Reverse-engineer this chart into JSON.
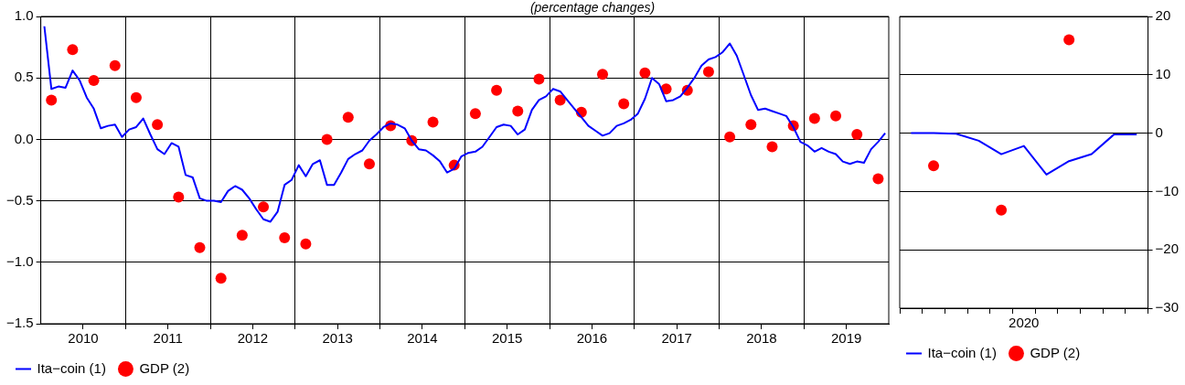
{
  "chart_data": [
    {
      "type": "line",
      "subtitle": "(percentage changes)",
      "xlim": [
        2010,
        2020
      ],
      "xticks": [
        {
          "value": 2010.5,
          "label": "2010"
        },
        {
          "value": 2011,
          "label": null
        },
        {
          "value": 2011.5,
          "label": "2011"
        },
        {
          "value": 2012,
          "label": null
        },
        {
          "value": 2012.5,
          "label": "2012"
        },
        {
          "value": 2013,
          "label": null
        },
        {
          "value": 2013.5,
          "label": "2013"
        },
        {
          "value": 2014,
          "label": null
        },
        {
          "value": 2014.5,
          "label": "2014"
        },
        {
          "value": 2015,
          "label": null
        },
        {
          "value": 2015.5,
          "label": "2015"
        },
        {
          "value": 2016,
          "label": null
        },
        {
          "value": 2016.5,
          "label": "2016"
        },
        {
          "value": 2017,
          "label": null
        },
        {
          "value": 2017.5,
          "label": "2017"
        },
        {
          "value": 2018,
          "label": null
        },
        {
          "value": 2018.5,
          "label": "2018"
        },
        {
          "value": 2019,
          "label": null
        },
        {
          "value": 2019.5,
          "label": "2019"
        }
      ],
      "ylim": [
        -1.5,
        1.0
      ],
      "yticks": [
        {
          "value": -1.5,
          "label": "−1.5"
        },
        {
          "value": -1.0,
          "label": "−1.0"
        },
        {
          "value": -0.5,
          "label": "−0.5"
        },
        {
          "value": 0,
          "label": "0.0"
        },
        {
          "value": 0.5,
          "label": "0.5"
        },
        {
          "value": 1.0,
          "label": "1.0"
        }
      ],
      "grid": true,
      "legend": "bottom left",
      "series": [
        {
          "name": "Ita−coin (1)",
          "type": "line",
          "color": "#0000ff",
          "marker": "none",
          "line_style": "solid",
          "x": [
            2010.042,
            2010.125,
            2010.208,
            2010.292,
            2010.375,
            2010.458,
            2010.542,
            2010.625,
            2010.708,
            2010.792,
            2010.875,
            2010.958,
            2011.042,
            2011.125,
            2011.208,
            2011.292,
            2011.375,
            2011.458,
            2011.542,
            2011.625,
            2011.708,
            2011.792,
            2011.875,
            2011.958,
            2012.042,
            2012.125,
            2012.208,
            2012.292,
            2012.375,
            2012.458,
            2012.542,
            2012.625,
            2012.708,
            2012.792,
            2012.875,
            2012.958,
            2013.042,
            2013.125,
            2013.208,
            2013.292,
            2013.375,
            2013.458,
            2013.542,
            2013.625,
            2013.708,
            2013.792,
            2013.875,
            2013.958,
            2014.042,
            2014.125,
            2014.208,
            2014.292,
            2014.375,
            2014.458,
            2014.542,
            2014.625,
            2014.708,
            2014.792,
            2014.875,
            2014.958,
            2015.042,
            2015.125,
            2015.208,
            2015.292,
            2015.375,
            2015.458,
            2015.542,
            2015.625,
            2015.708,
            2015.792,
            2015.875,
            2015.958,
            2016.042,
            2016.125,
            2016.208,
            2016.292,
            2016.375,
            2016.458,
            2016.542,
            2016.625,
            2016.708,
            2016.792,
            2016.875,
            2016.958,
            2017.042,
            2017.125,
            2017.208,
            2017.292,
            2017.375,
            2017.458,
            2017.542,
            2017.625,
            2017.708,
            2017.792,
            2017.875,
            2017.958,
            2018.042,
            2018.125,
            2018.208,
            2018.292,
            2018.375,
            2018.458,
            2018.542,
            2018.625,
            2018.708,
            2018.792,
            2018.875,
            2018.958,
            2019.042,
            2019.125,
            2019.208,
            2019.292,
            2019.375,
            2019.458,
            2019.542,
            2019.625,
            2019.708,
            2019.792,
            2019.875,
            2019.958
          ],
          "values": [
            0.92,
            0.41,
            0.43,
            0.42,
            0.56,
            0.48,
            0.34,
            0.25,
            0.09,
            0.11,
            0.12,
            0.02,
            0.08,
            0.1,
            0.17,
            0.04,
            -0.08,
            -0.12,
            -0.03,
            -0.06,
            -0.29,
            -0.31,
            -0.48,
            -0.5,
            -0.5,
            -0.51,
            -0.42,
            -0.38,
            -0.41,
            -0.48,
            -0.57,
            -0.65,
            -0.67,
            -0.59,
            -0.37,
            -0.33,
            -0.21,
            -0.3,
            -0.2,
            -0.17,
            -0.37,
            -0.37,
            -0.27,
            -0.16,
            -0.12,
            -0.09,
            -0.01,
            0.04,
            0.1,
            0.13,
            0.12,
            0.09,
            -0.01,
            -0.08,
            -0.09,
            -0.13,
            -0.18,
            -0.27,
            -0.24,
            -0.14,
            -0.11,
            -0.1,
            -0.06,
            0.02,
            0.1,
            0.12,
            0.11,
            0.04,
            0.08,
            0.24,
            0.32,
            0.35,
            0.41,
            0.39,
            0.32,
            0.25,
            0.18,
            0.11,
            0.07,
            0.03,
            0.05,
            0.11,
            0.13,
            0.16,
            0.21,
            0.33,
            0.5,
            0.45,
            0.31,
            0.32,
            0.35,
            0.42,
            0.5,
            0.6,
            0.65,
            0.67,
            0.71,
            0.78,
            0.68,
            0.52,
            0.36,
            0.24,
            0.25,
            0.23,
            0.21,
            0.19,
            0.1,
            -0.02,
            -0.05,
            -0.1,
            -0.07,
            -0.1,
            -0.12,
            -0.18,
            -0.2,
            -0.18,
            -0.19,
            -0.08,
            -0.02,
            0.05
          ]
        },
        {
          "name": "GDP (2)",
          "type": "scatter",
          "color": "#ff0000",
          "marker": "circle",
          "x": [
            2010.125,
            2010.375,
            2010.625,
            2010.875,
            2011.125,
            2011.375,
            2011.625,
            2011.875,
            2012.125,
            2012.375,
            2012.625,
            2012.875,
            2013.125,
            2013.375,
            2013.625,
            2013.875,
            2014.125,
            2014.375,
            2014.625,
            2014.875,
            2015.125,
            2015.375,
            2015.625,
            2015.875,
            2016.125,
            2016.375,
            2016.625,
            2016.875,
            2017.125,
            2017.375,
            2017.625,
            2017.875,
            2018.125,
            2018.375,
            2018.625,
            2018.875,
            2019.125,
            2019.375,
            2019.625,
            2019.875
          ],
          "values": [
            0.32,
            0.73,
            0.48,
            0.6,
            0.34,
            0.12,
            -0.47,
            -0.88,
            -1.13,
            -0.78,
            -0.55,
            -0.8,
            -0.85,
            0.0,
            0.18,
            -0.2,
            0.11,
            -0.01,
            0.14,
            -0.21,
            0.21,
            0.4,
            0.23,
            0.49,
            0.32,
            0.22,
            0.53,
            0.29,
            0.54,
            0.41,
            0.4,
            0.55,
            0.02,
            0.12,
            -0.06,
            0.11,
            0.17,
            0.19,
            0.04,
            -0.32
          ]
        }
      ]
    },
    {
      "type": "line",
      "categories": [
        null,
        null,
        null,
        null,
        null,
        null,
        null,
        null,
        null,
        null,
        null
      ],
      "annotations": [
        "2020"
      ],
      "y2lim": [
        -30,
        20
      ],
      "y2ticks": [
        {
          "value": -30,
          "label": "−30"
        },
        {
          "value": -20,
          "label": "−20"
        },
        {
          "value": -10,
          "label": "−10"
        },
        0,
        10,
        20
      ],
      "grid": "y",
      "legend": "bottom left",
      "series": [
        {
          "name": "Ita−coin (1)",
          "type": "line",
          "axis": "y2",
          "color": "#0000ff",
          "marker": "none",
          "line_style": "solid",
          "values": [
            0.0,
            0.0,
            -0.1,
            -1.3,
            -3.6,
            -2.2,
            -7.1,
            -4.8,
            -3.6,
            -0.2,
            -0.2
          ]
        },
        {
          "name": "GDP (2)",
          "type": "scatter",
          "axis": "y2",
          "color": "#ff0000",
          "marker": "circle",
          "values": [
            null,
            -5.6,
            null,
            null,
            -13.2,
            null,
            null,
            16.0,
            null,
            null,
            null
          ]
        }
      ]
    }
  ]
}
